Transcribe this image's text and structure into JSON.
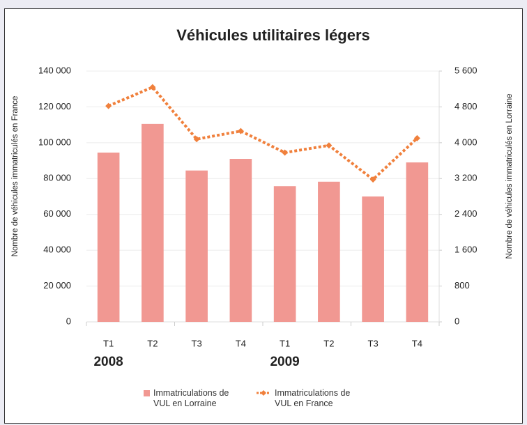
{
  "chart_data": {
    "type": "bar_line",
    "title": "Véhicules utilitaires légers",
    "ylabel": "Nombre de véhicules immatriculés en France",
    "y2label": "Nombre de véhicules immatriculés en Lorraine",
    "categories": [
      "T1",
      "T2",
      "T3",
      "T4",
      "T1",
      "T2",
      "T3",
      "T4"
    ],
    "category_groups": [
      "2008",
      "2009"
    ],
    "series": [
      {
        "name": "Immatriculations de VUL en Lorraine",
        "type": "bar",
        "axis": "y2",
        "color": "#f19892",
        "values": [
          3780,
          4420,
          3380,
          3640,
          3030,
          3130,
          2800,
          3560
        ]
      },
      {
        "name": "Immatriculations de VUL en France",
        "type": "line",
        "axis": "y",
        "color": "#f0803c",
        "values": [
          120500,
          131000,
          102000,
          106500,
          94500,
          98500,
          79500,
          102500
        ]
      }
    ],
    "ylim": [
      0,
      140000
    ],
    "yticks": [
      0,
      {
        "value": 20000,
        "label": "20 000"
      },
      {
        "value": 40000,
        "label": "40 000"
      },
      {
        "value": 60000,
        "label": "60 000"
      },
      {
        "value": 80000,
        "label": "80 000"
      },
      {
        "value": 100000,
        "label": "100 000"
      },
      {
        "value": 120000,
        "label": "120 000"
      },
      {
        "value": 140000,
        "label": "140 000"
      }
    ],
    "y2lim": [
      0,
      5600
    ],
    "y2ticks": [
      0,
      800,
      {
        "value": 1600,
        "label": "1 600"
      },
      {
        "value": 2400,
        "label": "2 400"
      },
      {
        "value": 3200,
        "label": "3 200"
      },
      {
        "value": 4000,
        "label": "4 000"
      },
      {
        "value": 4800,
        "label": "4 800"
      },
      {
        "value": 5600,
        "label": "5 600"
      }
    ],
    "grid": true
  }
}
